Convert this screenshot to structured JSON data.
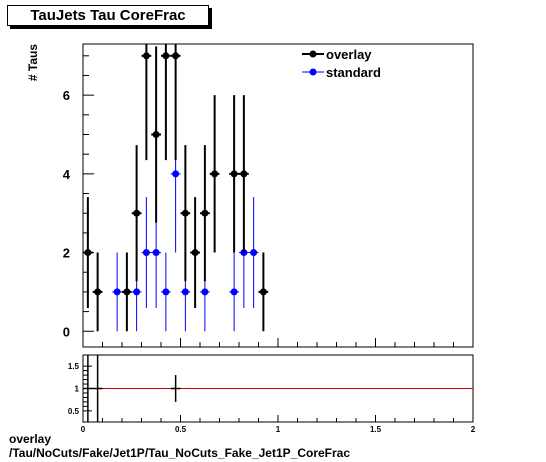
{
  "title": "TauJets Tau CoreFrac",
  "footer": {
    "line1": "overlay",
    "line2": "/Tau/NoCuts/Fake/Jet1P/Tau_NoCuts_Fake_Jet1P_CoreFrac"
  },
  "colors": {
    "overlay": "#000000",
    "standard": "#0000ff",
    "ratio_line": "#cc0000"
  },
  "chart_data": [
    {
      "type": "scatter",
      "ylabel": "# Taus",
      "xlim": [
        0,
        2
      ],
      "ylim": [
        -0.4,
        7.3
      ],
      "yticks": [
        0,
        2,
        4,
        6
      ],
      "legend": "top-right",
      "series": [
        {
          "name": "overlay",
          "x": [
            0.025,
            0.075,
            0.225,
            0.275,
            0.325,
            0.375,
            0.425,
            0.475,
            0.525,
            0.575,
            0.625,
            0.675,
            0.775,
            0.825,
            0.925
          ],
          "y": [
            2,
            1,
            1,
            3,
            7,
            5,
            7,
            7,
            3,
            2,
            3,
            4,
            4,
            4,
            1
          ],
          "yerr": [
            1.41,
            1.0,
            1.0,
            1.73,
            2.65,
            2.24,
            2.65,
            2.65,
            1.73,
            1.41,
            1.73,
            2.0,
            2.0,
            2.0,
            1.0
          ]
        },
        {
          "name": "standard",
          "x": [
            0.175,
            0.275,
            0.325,
            0.375,
            0.425,
            0.475,
            0.525,
            0.625,
            0.775,
            0.825,
            0.875
          ],
          "y": [
            1,
            1,
            2,
            2,
            1,
            4,
            1,
            1,
            1,
            2,
            2
          ],
          "yerr": [
            1.0,
            1.0,
            1.41,
            1.41,
            1.0,
            2.0,
            1.0,
            1.0,
            1.0,
            1.41,
            1.41
          ]
        }
      ]
    },
    {
      "type": "line",
      "xlim": [
        0,
        2
      ],
      "ylim": [
        0.25,
        1.75
      ],
      "xticks": [
        0,
        0.5,
        1,
        1.5,
        2
      ],
      "yticks": [
        0.5,
        1,
        1.5
      ],
      "reference_line": 1,
      "points": [
        {
          "x": 0.025,
          "y": 1,
          "err": 1.0
        },
        {
          "x": 0.075,
          "y": 1,
          "err": 1.0
        },
        {
          "x": 0.475,
          "y": 1,
          "err": 0.3
        }
      ]
    }
  ]
}
